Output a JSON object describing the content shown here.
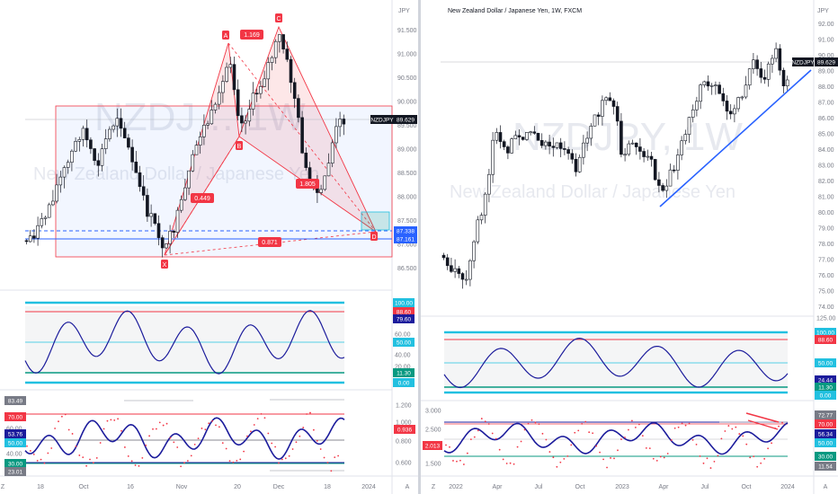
{
  "left": {
    "watermark_big": "NZDJ… 1W",
    "watermark_small": "New Zealand Dollar / Japanese Yen",
    "unit": "JPY",
    "price_axis": [
      "91.500",
      "91.000",
      "90.500",
      "90.000",
      "89.500",
      "89.000",
      "88.500",
      "88.000",
      "87.500",
      "87.000",
      "86.500"
    ],
    "price_tags": [
      {
        "label": "NZDJPY",
        "value": "89.629",
        "color": "#131722"
      },
      {
        "label": "",
        "value": "87.338",
        "color": "#2962ff"
      },
      {
        "label": "",
        "value": "87.161",
        "color": "#2962ff"
      }
    ],
    "x_axis": [
      "Z",
      "18",
      "Oct",
      "16",
      "Nov",
      "20",
      "Dec",
      "18",
      "2024",
      "A"
    ],
    "pattern_points": [
      "X",
      "A",
      "B",
      "C",
      "D"
    ],
    "ratios": [
      "1.169",
      "0.449",
      "1.805",
      "0.871"
    ],
    "osc1_axis": [
      "100.00",
      "88.60",
      "79.60",
      "60.00",
      "50.00",
      "40.00",
      "20.00",
      "11.30",
      "0.00"
    ],
    "osc2_axis": [
      "83.49",
      "70.00",
      "60.00",
      "53.76",
      "50.00",
      "40.00",
      "30.00",
      "23.01"
    ],
    "osc2_right": [
      "1.200",
      "1.000",
      "0.936",
      "0.800",
      "0.600"
    ]
  },
  "right": {
    "title": "New Zealand Dollar / Japanese Yen, 1W, FXCM",
    "watermark_big": "NZDJPY, 1W",
    "watermark_small": "New Zealand Dollar / Japanese Yen",
    "unit": "JPY",
    "price_axis": [
      "92.00",
      "91.00",
      "90.00",
      "89.00",
      "88.00",
      "87.00",
      "86.00",
      "85.00",
      "84.00",
      "83.00",
      "82.00",
      "81.00",
      "80.00",
      "79.00",
      "78.00",
      "77.00",
      "76.00",
      "75.00",
      "74.00"
    ],
    "price_tag": {
      "label": "NZDJPY",
      "value": "89.629"
    },
    "x_axis": [
      "Z",
      "2022",
      "Apr",
      "Jul",
      "Oct",
      "2023",
      "Apr",
      "Jul",
      "Oct",
      "2024",
      "A"
    ],
    "osc1_axis": [
      "125.00",
      "100.00",
      "88.60",
      "50.00",
      "24.44",
      "11.30",
      "0.00"
    ],
    "osc2_axis": [
      "72.77",
      "70.00",
      "56.34",
      "50.00",
      "30.00",
      "11.54"
    ],
    "osc2_left": [
      "3.000",
      "2.500",
      "2.013",
      "1.500"
    ]
  },
  "colors": {
    "red": "#f23645",
    "blue": "#2962ff",
    "navy": "#1c1c9c",
    "cyan": "#22c0e0",
    "green": "#089981",
    "gray": "#787b86"
  }
}
